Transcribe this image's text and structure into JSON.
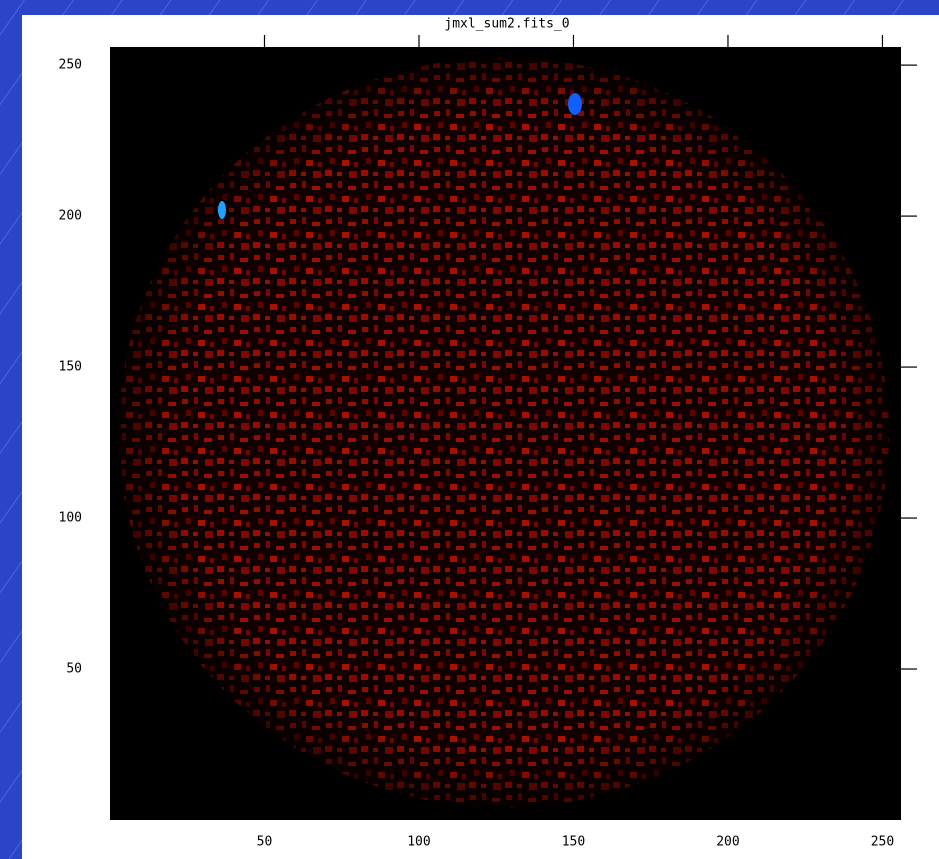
{
  "chart_data": {
    "type": "image",
    "title": "jmxl_sum2.fits_0",
    "xlim": [
      0,
      256
    ],
    "ylim": [
      0,
      256
    ],
    "xticks": [
      50,
      100,
      150,
      200,
      250
    ],
    "yticks": [
      50,
      100,
      150,
      200,
      250
    ]
  }
}
